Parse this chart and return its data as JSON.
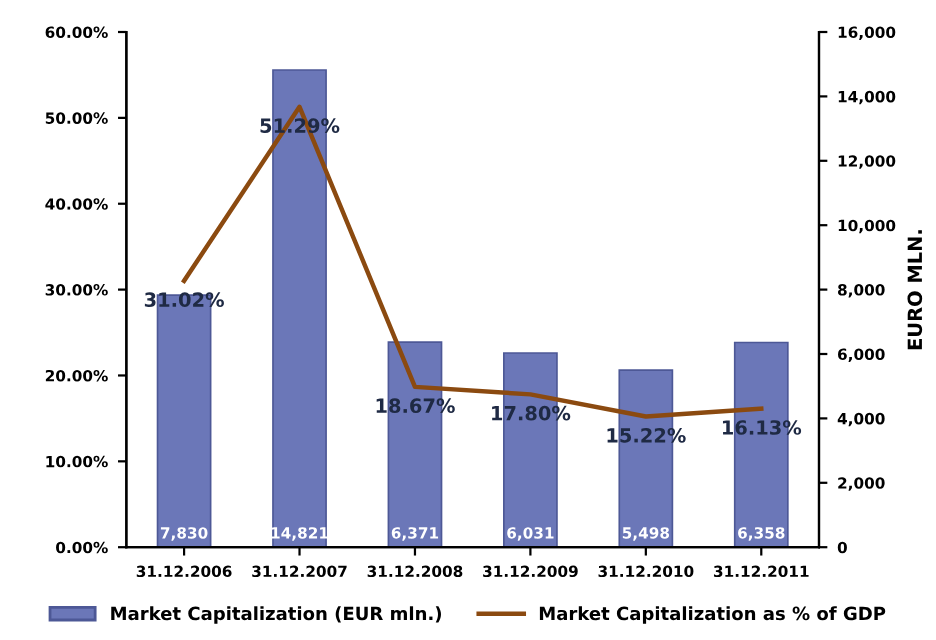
{
  "chart_data": {
    "type": "bar",
    "categories": [
      "31.12.2006",
      "31.12.2007",
      "31.12.2008",
      "31.12.2009",
      "31.12.2010",
      "31.12.2011"
    ],
    "y2label": "EURO MLN.",
    "ylim": [
      0,
      60
    ],
    "yticks": [
      {
        "value": 0,
        "label": "0.00%"
      },
      {
        "value": 10,
        "label": "10.00%"
      },
      {
        "value": 20,
        "label": "20.00%"
      },
      {
        "value": 30,
        "label": "30.00%"
      },
      {
        "value": 40,
        "label": "40.00%"
      },
      {
        "value": 50,
        "label": "50.00%"
      },
      {
        "value": 60,
        "label": "60.00%"
      }
    ],
    "y2lim": [
      0,
      16000
    ],
    "y2ticks": [
      0,
      {
        "value": 2000,
        "label": "2,000"
      },
      {
        "value": 4000,
        "label": "4,000"
      },
      {
        "value": 6000,
        "label": "6,000"
      },
      {
        "value": 8000,
        "label": "8,000"
      },
      {
        "value": 10000,
        "label": "10,000"
      },
      {
        "value": 12000,
        "label": "12,000"
      },
      {
        "value": 14000,
        "label": "14,000"
      },
      {
        "value": 16000,
        "label": "16,000"
      }
    ],
    "series": [
      {
        "name": "Market Capitalization (EUR mln.)",
        "axis": "y2",
        "color": "#6b77b8",
        "values": [
          7830,
          14821,
          6371,
          6031,
          5498,
          6358
        ],
        "value_labels": [
          "7,830",
          "14,821",
          "6,371",
          "6,031",
          "5,498",
          "6,358"
        ]
      },
      {
        "name": "Market Capitalization as % of GDP",
        "type": "line",
        "axis": "y",
        "color": "#8b4a10",
        "values": [
          31.02,
          51.29,
          18.67,
          17.8,
          15.22,
          16.13
        ],
        "value_labels": [
          "31.02%",
          "51.29%",
          "18.67%",
          "17.80%",
          "15.22%",
          "16.13%"
        ]
      }
    ],
    "legend": "bottom",
    "grid": false,
    "marker": "none",
    "line_style": "solid"
  }
}
